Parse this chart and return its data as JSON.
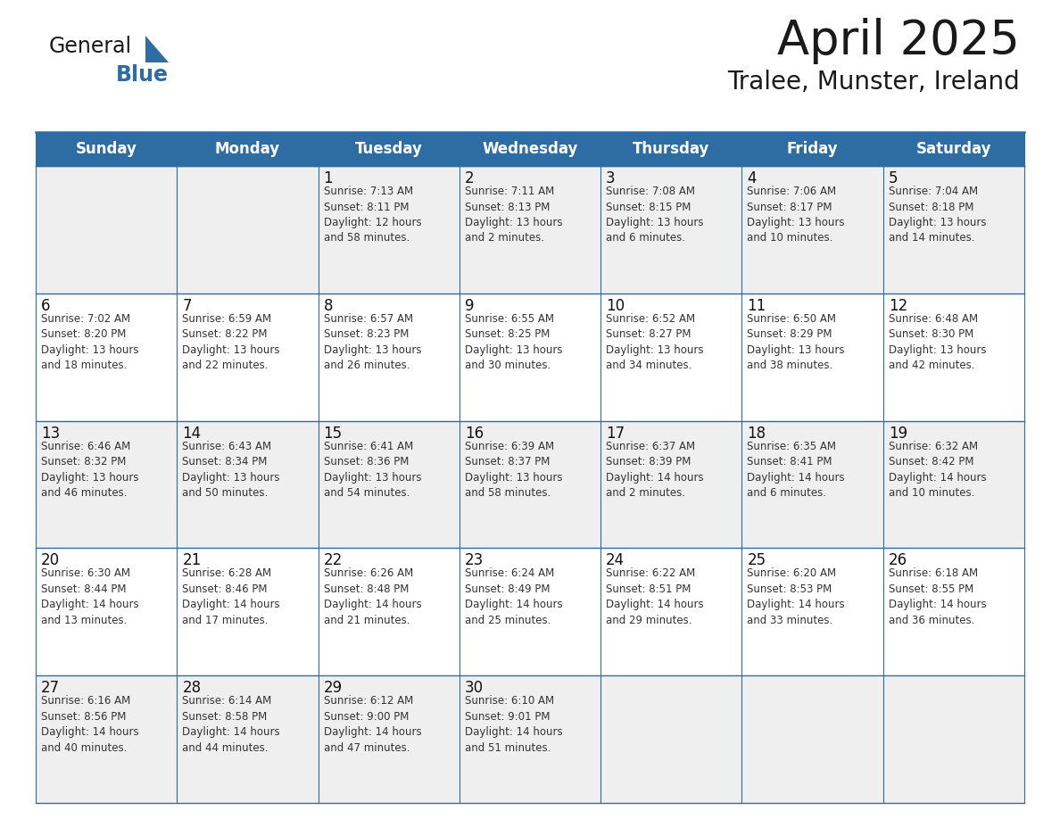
{
  "title": "April 2025",
  "subtitle": "Tralee, Munster, Ireland",
  "header_bg_color": "#2E6DA4",
  "header_text_color": "#FFFFFF",
  "cell_bg_color_odd": "#EFEFEF",
  "cell_bg_color_even": "#FFFFFF",
  "day_names": [
    "Sunday",
    "Monday",
    "Tuesday",
    "Wednesday",
    "Thursday",
    "Friday",
    "Saturday"
  ],
  "weeks": [
    [
      {
        "day": "",
        "text": ""
      },
      {
        "day": "",
        "text": ""
      },
      {
        "day": "1",
        "text": "Sunrise: 7:13 AM\nSunset: 8:11 PM\nDaylight: 12 hours\nand 58 minutes."
      },
      {
        "day": "2",
        "text": "Sunrise: 7:11 AM\nSunset: 8:13 PM\nDaylight: 13 hours\nand 2 minutes."
      },
      {
        "day": "3",
        "text": "Sunrise: 7:08 AM\nSunset: 8:15 PM\nDaylight: 13 hours\nand 6 minutes."
      },
      {
        "day": "4",
        "text": "Sunrise: 7:06 AM\nSunset: 8:17 PM\nDaylight: 13 hours\nand 10 minutes."
      },
      {
        "day": "5",
        "text": "Sunrise: 7:04 AM\nSunset: 8:18 PM\nDaylight: 13 hours\nand 14 minutes."
      }
    ],
    [
      {
        "day": "6",
        "text": "Sunrise: 7:02 AM\nSunset: 8:20 PM\nDaylight: 13 hours\nand 18 minutes."
      },
      {
        "day": "7",
        "text": "Sunrise: 6:59 AM\nSunset: 8:22 PM\nDaylight: 13 hours\nand 22 minutes."
      },
      {
        "day": "8",
        "text": "Sunrise: 6:57 AM\nSunset: 8:23 PM\nDaylight: 13 hours\nand 26 minutes."
      },
      {
        "day": "9",
        "text": "Sunrise: 6:55 AM\nSunset: 8:25 PM\nDaylight: 13 hours\nand 30 minutes."
      },
      {
        "day": "10",
        "text": "Sunrise: 6:52 AM\nSunset: 8:27 PM\nDaylight: 13 hours\nand 34 minutes."
      },
      {
        "day": "11",
        "text": "Sunrise: 6:50 AM\nSunset: 8:29 PM\nDaylight: 13 hours\nand 38 minutes."
      },
      {
        "day": "12",
        "text": "Sunrise: 6:48 AM\nSunset: 8:30 PM\nDaylight: 13 hours\nand 42 minutes."
      }
    ],
    [
      {
        "day": "13",
        "text": "Sunrise: 6:46 AM\nSunset: 8:32 PM\nDaylight: 13 hours\nand 46 minutes."
      },
      {
        "day": "14",
        "text": "Sunrise: 6:43 AM\nSunset: 8:34 PM\nDaylight: 13 hours\nand 50 minutes."
      },
      {
        "day": "15",
        "text": "Sunrise: 6:41 AM\nSunset: 8:36 PM\nDaylight: 13 hours\nand 54 minutes."
      },
      {
        "day": "16",
        "text": "Sunrise: 6:39 AM\nSunset: 8:37 PM\nDaylight: 13 hours\nand 58 minutes."
      },
      {
        "day": "17",
        "text": "Sunrise: 6:37 AM\nSunset: 8:39 PM\nDaylight: 14 hours\nand 2 minutes."
      },
      {
        "day": "18",
        "text": "Sunrise: 6:35 AM\nSunset: 8:41 PM\nDaylight: 14 hours\nand 6 minutes."
      },
      {
        "day": "19",
        "text": "Sunrise: 6:32 AM\nSunset: 8:42 PM\nDaylight: 14 hours\nand 10 minutes."
      }
    ],
    [
      {
        "day": "20",
        "text": "Sunrise: 6:30 AM\nSunset: 8:44 PM\nDaylight: 14 hours\nand 13 minutes."
      },
      {
        "day": "21",
        "text": "Sunrise: 6:28 AM\nSunset: 8:46 PM\nDaylight: 14 hours\nand 17 minutes."
      },
      {
        "day": "22",
        "text": "Sunrise: 6:26 AM\nSunset: 8:48 PM\nDaylight: 14 hours\nand 21 minutes."
      },
      {
        "day": "23",
        "text": "Sunrise: 6:24 AM\nSunset: 8:49 PM\nDaylight: 14 hours\nand 25 minutes."
      },
      {
        "day": "24",
        "text": "Sunrise: 6:22 AM\nSunset: 8:51 PM\nDaylight: 14 hours\nand 29 minutes."
      },
      {
        "day": "25",
        "text": "Sunrise: 6:20 AM\nSunset: 8:53 PM\nDaylight: 14 hours\nand 33 minutes."
      },
      {
        "day": "26",
        "text": "Sunrise: 6:18 AM\nSunset: 8:55 PM\nDaylight: 14 hours\nand 36 minutes."
      }
    ],
    [
      {
        "day": "27",
        "text": "Sunrise: 6:16 AM\nSunset: 8:56 PM\nDaylight: 14 hours\nand 40 minutes."
      },
      {
        "day": "28",
        "text": "Sunrise: 6:14 AM\nSunset: 8:58 PM\nDaylight: 14 hours\nand 44 minutes."
      },
      {
        "day": "29",
        "text": "Sunrise: 6:12 AM\nSunset: 9:00 PM\nDaylight: 14 hours\nand 47 minutes."
      },
      {
        "day": "30",
        "text": "Sunrise: 6:10 AM\nSunset: 9:01 PM\nDaylight: 14 hours\nand 51 minutes."
      },
      {
        "day": "",
        "text": ""
      },
      {
        "day": "",
        "text": ""
      },
      {
        "day": "",
        "text": ""
      }
    ]
  ],
  "title_fontsize": 38,
  "subtitle_fontsize": 20,
  "header_fontsize": 12,
  "day_num_fontsize": 12,
  "cell_text_fontsize": 8.5,
  "logo_color_general": "#1a1a1a",
  "logo_color_blue": "#2E6DA4",
  "grid_line_color": "#2E6DA4",
  "title_color": "#1a1a1a",
  "subtitle_color": "#1a1a1a",
  "cell_text_color": "#333333",
  "day_num_color": "#111111",
  "fig_width": 11.88,
  "fig_height": 9.18,
  "fig_dpi": 100
}
